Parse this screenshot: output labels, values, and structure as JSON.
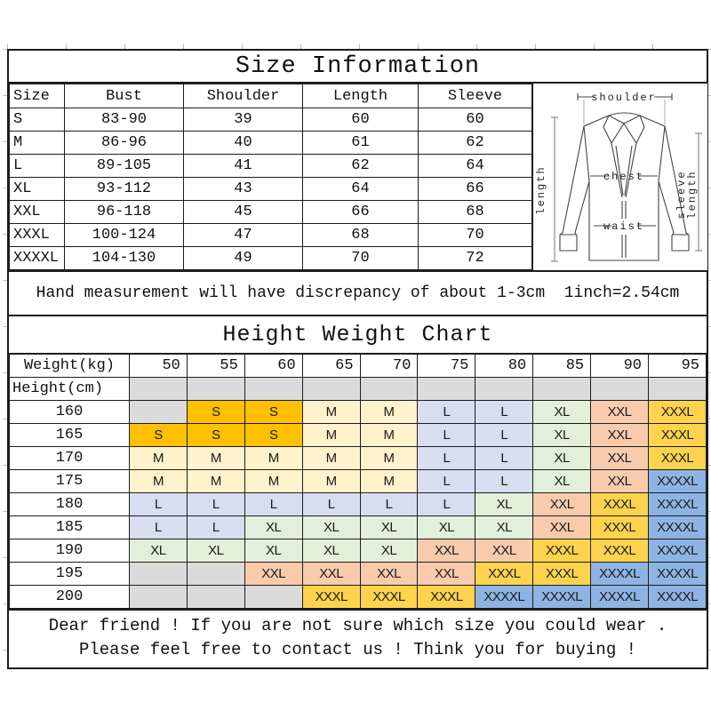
{
  "size_info": {
    "title": "Size Information",
    "columns": [
      "Size",
      "Bust",
      "Shoulder",
      "Length",
      "Sleeve"
    ],
    "rows": [
      [
        "S",
        "83-90",
        "39",
        "60",
        "60"
      ],
      [
        "M",
        "86-96",
        "40",
        "61",
        "62"
      ],
      [
        "L",
        "89-105",
        "41",
        "62",
        "64"
      ],
      [
        "XL",
        "93-112",
        "43",
        "64",
        "66"
      ],
      [
        "XXL",
        "96-118",
        "45",
        "66",
        "68"
      ],
      [
        "XXXL",
        "100-124",
        "47",
        "68",
        "70"
      ],
      [
        "XXXXL",
        "104-130",
        "49",
        "70",
        "72"
      ]
    ],
    "note": "Hand measurement will have discrepancy of about 1-3cm  1inch=2.54cm"
  },
  "diagram": {
    "shoulder_label": "shoulder",
    "length_label": "length",
    "chest_label": "chest",
    "waist_label": "waist",
    "sleeve_label_1": "sleeve",
    "sleeve_label_2": "length"
  },
  "height_weight": {
    "title": "Height Weight Chart",
    "weight_label": "Weight(kg)",
    "height_label": "Height(cm)",
    "weights": [
      "50",
      "55",
      "60",
      "65",
      "70",
      "75",
      "80",
      "85",
      "90",
      "95"
    ],
    "rows": [
      {
        "height": "160",
        "cells": [
          "",
          "S",
          "S",
          "M",
          "M",
          "L",
          "L",
          "XL",
          "XXL",
          "XXXL"
        ]
      },
      {
        "height": "165",
        "cells": [
          "S",
          "S",
          "S",
          "M",
          "M",
          "L",
          "L",
          "XL",
          "XXL",
          "XXXL"
        ]
      },
      {
        "height": "170",
        "cells": [
          "M",
          "M",
          "M",
          "M",
          "M",
          "L",
          "L",
          "XL",
          "XXL",
          "XXXL"
        ]
      },
      {
        "height": "175",
        "cells": [
          "M",
          "M",
          "M",
          "M",
          "M",
          "L",
          "L",
          "XL",
          "XXL",
          "XXXXL"
        ]
      },
      {
        "height": "180",
        "cells": [
          "L",
          "L",
          "L",
          "L",
          "L",
          "L",
          "XL",
          "XXL",
          "XXXL",
          "XXXXL"
        ]
      },
      {
        "height": "185",
        "cells": [
          "L",
          "L",
          "XL",
          "XL",
          "XL",
          "XL",
          "XL",
          "XXL",
          "XXXL",
          "XXXXL"
        ]
      },
      {
        "height": "190",
        "cells": [
          "XL",
          "XL",
          "XL",
          "XL",
          "XL",
          "XXL",
          "XXL",
          "XXXL",
          "XXXL",
          "XXXXL"
        ]
      },
      {
        "height": "195",
        "cells": [
          "",
          "",
          "XXL",
          "XXL",
          "XXL",
          "XXL",
          "XXXL",
          "XXXL",
          "XXXXL",
          "XXXXL"
        ]
      },
      {
        "height": "200",
        "cells": [
          "",
          "",
          "",
          "XXXL",
          "XXXL",
          "XXXL",
          "XXXXL",
          "XXXXL",
          "XXXXL",
          "XXXXL"
        ]
      }
    ],
    "size_colors": {
      "S": "#FFC000",
      "M": "#FFF2CC",
      "L": "#D6DEF0",
      "XL": "#E2EFDA",
      "XXL": "#F8CBAD",
      "XXXL": "#FFD34D",
      "XXXXL": "#8EB4E3",
      "empty": "#DBDBDB"
    }
  },
  "footer": {
    "line1": "Dear friend ! If you are not sure which size you could wear .",
    "line2": "Please feel free to contact us ! Think you for buying !"
  }
}
